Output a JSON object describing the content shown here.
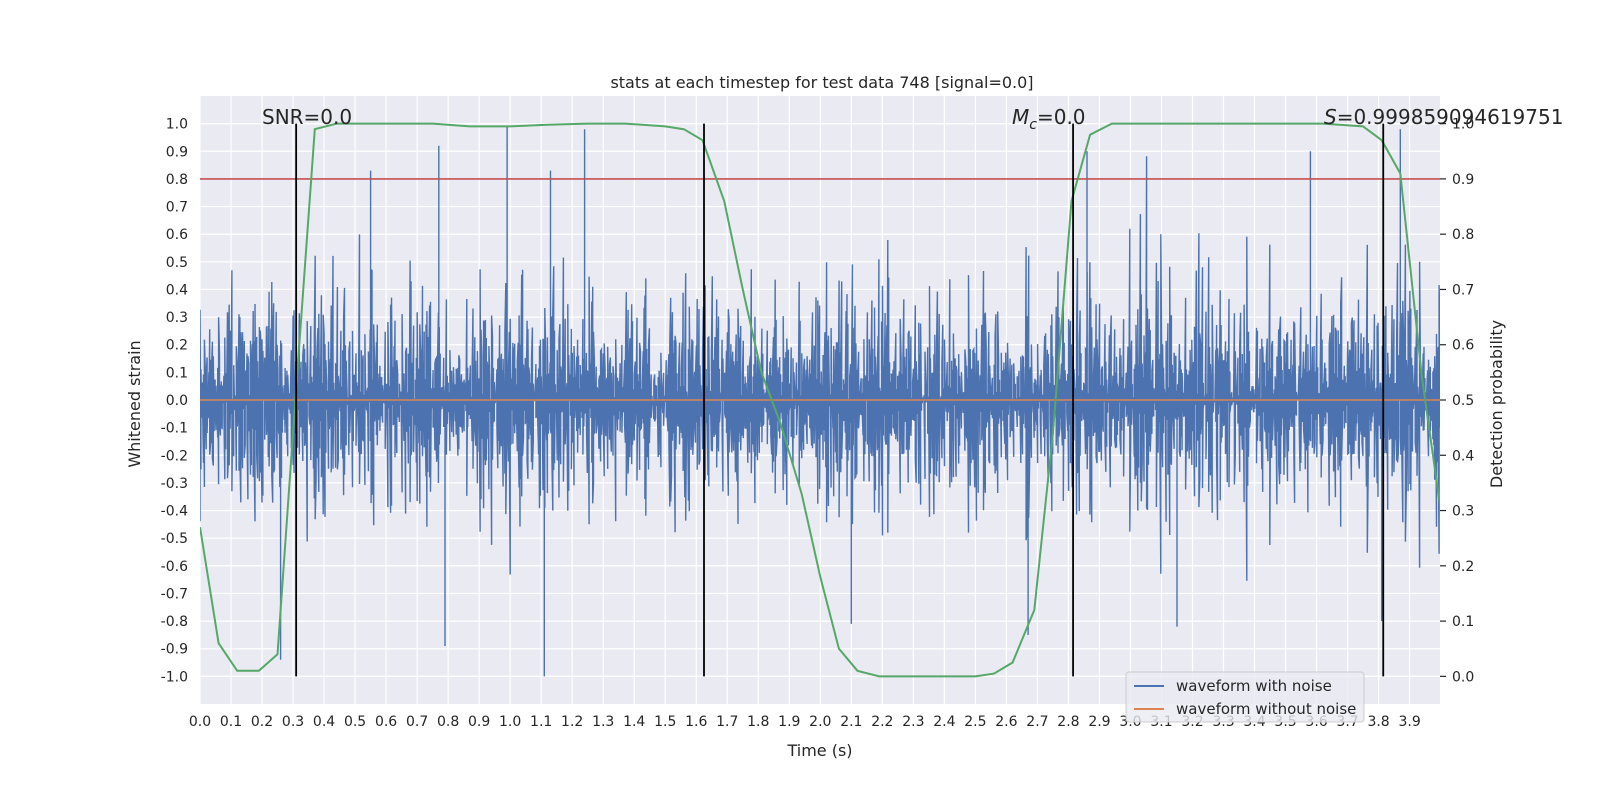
{
  "chart_data": {
    "type": "line",
    "title": "stats at each timestep for test data 748 [signal=0.0]",
    "xlabel": "Time (s)",
    "ylabel_left": "Whitened strain",
    "ylabel_right": "Detection probability",
    "xlim": [
      0.0,
      3.998
    ],
    "ylim_left": [
      -1.1,
      1.1
    ],
    "ylim_right": [
      -0.05,
      1.05
    ],
    "x_ticks": [
      "0.0",
      "0.1",
      "0.2",
      "0.3",
      "0.4",
      "0.5",
      "0.6",
      "0.7",
      "0.8",
      "0.9",
      "1.0",
      "1.1",
      "1.2",
      "1.3",
      "1.4",
      "1.5",
      "1.6",
      "1.7",
      "1.8",
      "1.9",
      "2.0",
      "2.1",
      "2.2",
      "2.3",
      "2.4",
      "2.5",
      "2.6",
      "2.7",
      "2.8",
      "2.9",
      "3.0",
      "3.1",
      "3.2",
      "3.3",
      "3.4",
      "3.5",
      "3.6",
      "3.7",
      "3.8",
      "3.9"
    ],
    "y_ticks_left": [
      "1.0",
      "0.9",
      "0.8",
      "0.7",
      "0.6",
      "0.5",
      "0.4",
      "0.3",
      "0.2",
      "0.1",
      "0.0",
      "-0.1",
      "-0.2",
      "-0.3",
      "-0.4",
      "-0.5",
      "-0.6",
      "-0.7",
      "-0.8",
      "-0.9",
      "-1.0"
    ],
    "y_ticks_right": [
      "1.0",
      "0.9",
      "0.8",
      "0.7",
      "0.6",
      "0.5",
      "0.4",
      "0.3",
      "0.2",
      "0.1",
      "0.0"
    ],
    "grid": true,
    "legend_position": "lower-right",
    "annotations": {
      "snr": "SNR=0.0",
      "mc_symbol": "M",
      "mc_subscript": "c",
      "mc_value": "=0.0",
      "s_symbol": "S",
      "s_value": "=0.999859094619751"
    },
    "threshold": {
      "right_axis_value": 0.9,
      "color": "#c44e52"
    },
    "vertical_lines_x": [
      0.31,
      1.625,
      2.815,
      3.815
    ],
    "series": [
      {
        "name": "waveform with noise",
        "color": "#4c72b0",
        "axis": "left",
        "style": "noise",
        "x_range": [
          0.0,
          3.998
        ],
        "envelope_typical": 0.4,
        "min": -1.0,
        "max": 0.98,
        "notable_peaks": [
          {
            "x": 0.26,
            "y": -0.94
          },
          {
            "x": 0.55,
            "y": 0.83
          },
          {
            "x": 0.79,
            "y": -0.89
          },
          {
            "x": 0.77,
            "y": 0.92
          },
          {
            "x": 0.99,
            "y": 0.99
          },
          {
            "x": 1.11,
            "y": -1.0
          },
          {
            "x": 1.13,
            "y": 0.83
          },
          {
            "x": 1.24,
            "y": 0.98
          },
          {
            "x": 2.1,
            "y": -0.81
          },
          {
            "x": 2.67,
            "y": -0.85
          },
          {
            "x": 2.86,
            "y": 0.9
          },
          {
            "x": 3.15,
            "y": -0.82
          },
          {
            "x": 3.58,
            "y": 0.9
          },
          {
            "x": 3.81,
            "y": -0.8
          },
          {
            "x": 3.87,
            "y": 0.98
          }
        ]
      },
      {
        "name": "waveform without noise",
        "color": "#dd8452",
        "axis": "left",
        "x": [
          0.0,
          3.998
        ],
        "y": [
          0.0,
          0.0
        ]
      },
      {
        "name": "detection probability",
        "color": "#55a868",
        "axis": "right",
        "x": [
          0.0,
          0.06,
          0.12,
          0.19,
          0.25,
          0.31,
          0.37,
          0.44,
          0.5,
          0.62,
          0.75,
          0.87,
          1.0,
          1.12,
          1.25,
          1.37,
          1.5,
          1.56,
          1.62,
          1.69,
          1.75,
          1.81,
          1.87,
          1.94,
          2.0,
          2.06,
          2.12,
          2.19,
          2.25,
          2.37,
          2.5,
          2.56,
          2.62,
          2.69,
          2.75,
          2.81,
          2.87,
          2.94,
          3.0,
          3.12,
          3.25,
          3.37,
          3.5,
          3.62,
          3.75,
          3.81,
          3.87,
          3.94,
          3.998
        ],
        "y": [
          0.27,
          0.06,
          0.01,
          0.01,
          0.04,
          0.52,
          0.99,
          1.0,
          1.0,
          1.0,
          1.0,
          0.995,
          0.995,
          0.998,
          1.0,
          1.0,
          0.995,
          0.99,
          0.97,
          0.86,
          0.7,
          0.55,
          0.46,
          0.33,
          0.18,
          0.05,
          0.01,
          0.0,
          0.0,
          0.0,
          0.0,
          0.005,
          0.025,
          0.12,
          0.44,
          0.86,
          0.98,
          1.0,
          1.0,
          1.0,
          1.0,
          1.0,
          1.0,
          1.0,
          0.995,
          0.97,
          0.91,
          0.54,
          0.31
        ]
      }
    ]
  }
}
